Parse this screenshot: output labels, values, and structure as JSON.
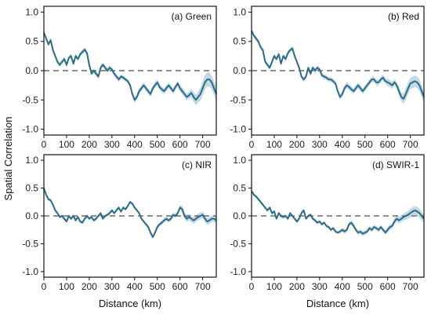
{
  "figure": {
    "ylabel": "Spatial Correlation",
    "xlabel": "Distance (km)"
  },
  "style": {
    "line_color": "#2e6c85",
    "band_color": "#b8d3e2",
    "zero_line_color": "#6a6a6a",
    "frame_color": "#111111"
  },
  "chart_data": [
    {
      "type": "line",
      "label": "(a) Green",
      "xlim": [
        0,
        760
      ],
      "ylim": [
        -1.1,
        1.1
      ],
      "xticks": [
        "0",
        "100",
        "200",
        "300",
        "400",
        "500",
        "600",
        "700"
      ],
      "yticks": [
        "-1.0",
        "-0.5",
        "0.0",
        "0.5",
        "1.0"
      ],
      "x": [
        0,
        10,
        20,
        30,
        40,
        50,
        60,
        70,
        80,
        90,
        100,
        110,
        120,
        130,
        140,
        150,
        160,
        170,
        180,
        190,
        200,
        210,
        220,
        230,
        240,
        250,
        260,
        270,
        280,
        290,
        300,
        310,
        320,
        330,
        340,
        350,
        360,
        370,
        380,
        390,
        400,
        410,
        420,
        430,
        440,
        450,
        460,
        470,
        480,
        490,
        500,
        510,
        520,
        530,
        540,
        550,
        560,
        570,
        580,
        590,
        600,
        610,
        620,
        630,
        640,
        650,
        660,
        670,
        680,
        690,
        700,
        710,
        720,
        730,
        740,
        750,
        760
      ],
      "y": [
        0.65,
        0.55,
        0.45,
        0.52,
        0.35,
        0.25,
        0.15,
        0.1,
        0.15,
        0.2,
        0.1,
        0.22,
        0.25,
        0.12,
        0.25,
        0.2,
        0.28,
        0.32,
        0.36,
        0.3,
        0.1,
        -0.05,
        0.0,
        -0.05,
        -0.1,
        0.05,
        0.1,
        0.05,
        0.0,
        0.05,
        0.02,
        -0.05,
        -0.1,
        -0.15,
        -0.1,
        -0.12,
        -0.15,
        -0.18,
        -0.25,
        -0.4,
        -0.5,
        -0.45,
        -0.35,
        -0.3,
        -0.25,
        -0.3,
        -0.35,
        -0.4,
        -0.3,
        -0.25,
        -0.2,
        -0.28,
        -0.32,
        -0.35,
        -0.3,
        -0.25,
        -0.3,
        -0.35,
        -0.28,
        -0.22,
        -0.3,
        -0.35,
        -0.4,
        -0.45,
        -0.42,
        -0.38,
        -0.45,
        -0.5,
        -0.45,
        -0.4,
        -0.3,
        -0.2,
        -0.15,
        -0.15,
        -0.2,
        -0.3,
        -0.4
      ],
      "band": [
        0.04,
        0.04,
        0.04,
        0.04,
        0.04,
        0.04,
        0.04,
        0.04,
        0.04,
        0.04,
        0.04,
        0.04,
        0.04,
        0.04,
        0.04,
        0.04,
        0.04,
        0.04,
        0.04,
        0.04,
        0.04,
        0.04,
        0.04,
        0.04,
        0.04,
        0.04,
        0.04,
        0.04,
        0.04,
        0.04,
        0.04,
        0.04,
        0.04,
        0.04,
        0.04,
        0.04,
        0.04,
        0.04,
        0.04,
        0.04,
        0.05,
        0.05,
        0.05,
        0.05,
        0.05,
        0.05,
        0.05,
        0.05,
        0.05,
        0.05,
        0.05,
        0.05,
        0.05,
        0.05,
        0.05,
        0.05,
        0.05,
        0.05,
        0.05,
        0.05,
        0.06,
        0.06,
        0.06,
        0.06,
        0.06,
        0.07,
        0.08,
        0.09,
        0.1,
        0.11,
        0.12,
        0.12,
        0.12,
        0.12,
        0.12,
        0.12,
        0.12
      ]
    },
    {
      "type": "line",
      "label": "(b) Red",
      "xlim": [
        0,
        760
      ],
      "ylim": [
        -1.1,
        1.1
      ],
      "xticks": [
        "0",
        "100",
        "200",
        "300",
        "400",
        "500",
        "600",
        "700"
      ],
      "yticks": [
        "-1.0",
        "-0.5",
        "0.0",
        "0.5",
        "1.0"
      ],
      "x": [
        0,
        10,
        20,
        30,
        40,
        50,
        60,
        70,
        80,
        90,
        100,
        110,
        120,
        130,
        140,
        150,
        160,
        170,
        180,
        190,
        200,
        210,
        220,
        230,
        240,
        250,
        260,
        270,
        280,
        290,
        300,
        310,
        320,
        330,
        340,
        350,
        360,
        370,
        380,
        390,
        400,
        410,
        420,
        430,
        440,
        450,
        460,
        470,
        480,
        490,
        500,
        510,
        520,
        530,
        540,
        550,
        560,
        570,
        580,
        590,
        600,
        610,
        620,
        630,
        640,
        650,
        660,
        670,
        680,
        690,
        700,
        710,
        720,
        730,
        740,
        750,
        760
      ],
      "y": [
        0.68,
        0.6,
        0.55,
        0.5,
        0.4,
        0.35,
        0.15,
        0.1,
        0.05,
        0.15,
        0.25,
        0.2,
        0.28,
        0.12,
        0.25,
        0.2,
        0.3,
        0.35,
        0.38,
        0.25,
        0.15,
        0.05,
        -0.1,
        -0.15,
        -0.1,
        0.05,
        -0.05,
        0.05,
        0.0,
        0.05,
        0.02,
        -0.08,
        -0.1,
        -0.12,
        -0.15,
        -0.15,
        -0.18,
        -0.22,
        -0.35,
        -0.45,
        -0.4,
        -0.3,
        -0.25,
        -0.28,
        -0.32,
        -0.35,
        -0.3,
        -0.25,
        -0.3,
        -0.35,
        -0.3,
        -0.25,
        -0.2,
        -0.15,
        -0.15,
        -0.2,
        -0.2,
        -0.15,
        -0.12,
        -0.18,
        -0.2,
        -0.22,
        -0.25,
        -0.2,
        -0.25,
        -0.35,
        -0.45,
        -0.48,
        -0.4,
        -0.3,
        -0.22,
        -0.2,
        -0.18,
        -0.2,
        -0.25,
        -0.35,
        -0.45
      ],
      "band": [
        0.04,
        0.04,
        0.04,
        0.04,
        0.04,
        0.04,
        0.04,
        0.04,
        0.04,
        0.04,
        0.04,
        0.04,
        0.04,
        0.04,
        0.04,
        0.04,
        0.04,
        0.04,
        0.04,
        0.04,
        0.04,
        0.04,
        0.04,
        0.04,
        0.04,
        0.04,
        0.04,
        0.04,
        0.04,
        0.04,
        0.04,
        0.04,
        0.04,
        0.04,
        0.04,
        0.04,
        0.04,
        0.04,
        0.04,
        0.04,
        0.05,
        0.05,
        0.05,
        0.05,
        0.05,
        0.05,
        0.05,
        0.05,
        0.05,
        0.05,
        0.05,
        0.05,
        0.05,
        0.05,
        0.05,
        0.05,
        0.05,
        0.05,
        0.05,
        0.05,
        0.06,
        0.06,
        0.06,
        0.06,
        0.06,
        0.07,
        0.08,
        0.09,
        0.1,
        0.1,
        0.1,
        0.1,
        0.1,
        0.1,
        0.1,
        0.1,
        0.1
      ]
    },
    {
      "type": "line",
      "label": "(c) NIR",
      "xlim": [
        0,
        760
      ],
      "ylim": [
        -1.1,
        1.1
      ],
      "xticks": [
        "0",
        "100",
        "200",
        "300",
        "400",
        "500",
        "600",
        "700"
      ],
      "yticks": [
        "-1.0",
        "-0.5",
        "0.0",
        "0.5",
        "1.0"
      ],
      "x": [
        0,
        10,
        20,
        30,
        40,
        50,
        60,
        70,
        80,
        90,
        100,
        110,
        120,
        130,
        140,
        150,
        160,
        170,
        180,
        190,
        200,
        210,
        220,
        230,
        240,
        250,
        260,
        270,
        280,
        290,
        300,
        310,
        320,
        330,
        340,
        350,
        360,
        370,
        380,
        390,
        400,
        410,
        420,
        430,
        440,
        450,
        460,
        470,
        480,
        490,
        500,
        510,
        520,
        530,
        540,
        550,
        560,
        570,
        580,
        590,
        600,
        610,
        620,
        630,
        640,
        650,
        660,
        670,
        680,
        690,
        700,
        710,
        720,
        730,
        740,
        750,
        760
      ],
      "y": [
        0.5,
        0.38,
        0.3,
        0.28,
        0.2,
        0.1,
        0.05,
        -0.02,
        0.0,
        -0.05,
        -0.1,
        0.0,
        -0.05,
        0.0,
        -0.08,
        -0.02,
        -0.1,
        -0.12,
        -0.05,
        0.0,
        -0.05,
        -0.02,
        -0.08,
        -0.05,
        0.0,
        0.05,
        -0.05,
        0.0,
        0.02,
        0.05,
        0.1,
        0.05,
        0.1,
        0.15,
        0.08,
        0.15,
        0.12,
        0.18,
        0.25,
        0.22,
        0.15,
        0.1,
        0.05,
        -0.05,
        -0.1,
        -0.15,
        -0.2,
        -0.3,
        -0.38,
        -0.3,
        -0.2,
        -0.15,
        -0.12,
        -0.08,
        -0.05,
        -0.08,
        -0.05,
        0.02,
        0.0,
        0.05,
        0.15,
        0.12,
        0.0,
        -0.05,
        -0.02,
        -0.05,
        -0.08,
        -0.05,
        -0.02,
        0.0,
        0.02,
        -0.05,
        -0.1,
        -0.08,
        -0.05,
        -0.05,
        -0.08
      ],
      "band": [
        0.03,
        0.03,
        0.03,
        0.03,
        0.03,
        0.03,
        0.03,
        0.03,
        0.03,
        0.03,
        0.03,
        0.03,
        0.03,
        0.03,
        0.03,
        0.03,
        0.03,
        0.03,
        0.03,
        0.03,
        0.03,
        0.03,
        0.03,
        0.03,
        0.03,
        0.03,
        0.03,
        0.03,
        0.03,
        0.03,
        0.03,
        0.03,
        0.03,
        0.03,
        0.03,
        0.03,
        0.03,
        0.03,
        0.03,
        0.03,
        0.03,
        0.03,
        0.03,
        0.03,
        0.03,
        0.03,
        0.04,
        0.04,
        0.04,
        0.04,
        0.04,
        0.04,
        0.04,
        0.04,
        0.04,
        0.04,
        0.04,
        0.04,
        0.04,
        0.04,
        0.05,
        0.06,
        0.06,
        0.06,
        0.06,
        0.06,
        0.06,
        0.06,
        0.06,
        0.06,
        0.06,
        0.06,
        0.06,
        0.06,
        0.06,
        0.06,
        0.06
      ]
    },
    {
      "type": "line",
      "label": "(d) SWIR-1",
      "xlim": [
        0,
        760
      ],
      "ylim": [
        -1.1,
        1.1
      ],
      "xticks": [
        "0",
        "100",
        "200",
        "300",
        "400",
        "500",
        "600",
        "700"
      ],
      "yticks": [
        "-1.0",
        "-0.5",
        "0.0",
        "0.5",
        "1.0"
      ],
      "x": [
        0,
        10,
        20,
        30,
        40,
        50,
        60,
        70,
        80,
        90,
        100,
        110,
        120,
        130,
        140,
        150,
        160,
        170,
        180,
        190,
        200,
        210,
        220,
        230,
        240,
        250,
        260,
        270,
        280,
        290,
        300,
        310,
        320,
        330,
        340,
        350,
        360,
        370,
        380,
        390,
        400,
        410,
        420,
        430,
        440,
        450,
        460,
        470,
        480,
        490,
        500,
        510,
        520,
        530,
        540,
        550,
        560,
        570,
        580,
        590,
        600,
        610,
        620,
        630,
        640,
        650,
        660,
        670,
        680,
        690,
        700,
        710,
        720,
        730,
        740,
        750,
        760
      ],
      "y": [
        0.45,
        0.38,
        0.35,
        0.3,
        0.25,
        0.2,
        0.15,
        0.1,
        0.15,
        0.05,
        0.08,
        -0.05,
        0.05,
        0.0,
        -0.02,
        0.0,
        -0.05,
        0.05,
        0.0,
        -0.05,
        -0.1,
        -0.05,
        0.05,
        0.1,
        -0.05,
        0.0,
        0.02,
        -0.05,
        -0.08,
        -0.12,
        -0.1,
        -0.15,
        -0.12,
        -0.18,
        -0.2,
        -0.25,
        -0.22,
        -0.28,
        -0.3,
        -0.28,
        -0.25,
        -0.28,
        -0.25,
        -0.15,
        -0.12,
        -0.18,
        -0.25,
        -0.3,
        -0.28,
        -0.32,
        -0.3,
        -0.28,
        -0.22,
        -0.25,
        -0.2,
        -0.22,
        -0.25,
        -0.2,
        -0.25,
        -0.3,
        -0.25,
        -0.2,
        -0.18,
        -0.1,
        -0.05,
        -0.08,
        -0.05,
        -0.02,
        0.0,
        0.02,
        0.05,
        0.08,
        0.1,
        0.08,
        0.05,
        0.0,
        -0.05
      ],
      "band": [
        0.03,
        0.03,
        0.03,
        0.03,
        0.03,
        0.03,
        0.03,
        0.03,
        0.03,
        0.03,
        0.03,
        0.03,
        0.03,
        0.03,
        0.03,
        0.03,
        0.03,
        0.03,
        0.03,
        0.03,
        0.03,
        0.03,
        0.03,
        0.03,
        0.03,
        0.03,
        0.03,
        0.03,
        0.03,
        0.03,
        0.03,
        0.03,
        0.03,
        0.03,
        0.03,
        0.03,
        0.03,
        0.03,
        0.03,
        0.03,
        0.04,
        0.04,
        0.04,
        0.04,
        0.04,
        0.04,
        0.04,
        0.04,
        0.04,
        0.04,
        0.04,
        0.04,
        0.04,
        0.04,
        0.04,
        0.04,
        0.04,
        0.04,
        0.04,
        0.04,
        0.05,
        0.05,
        0.05,
        0.05,
        0.06,
        0.06,
        0.06,
        0.06,
        0.07,
        0.07,
        0.08,
        0.08,
        0.08,
        0.08,
        0.08,
        0.08,
        0.08
      ]
    }
  ]
}
